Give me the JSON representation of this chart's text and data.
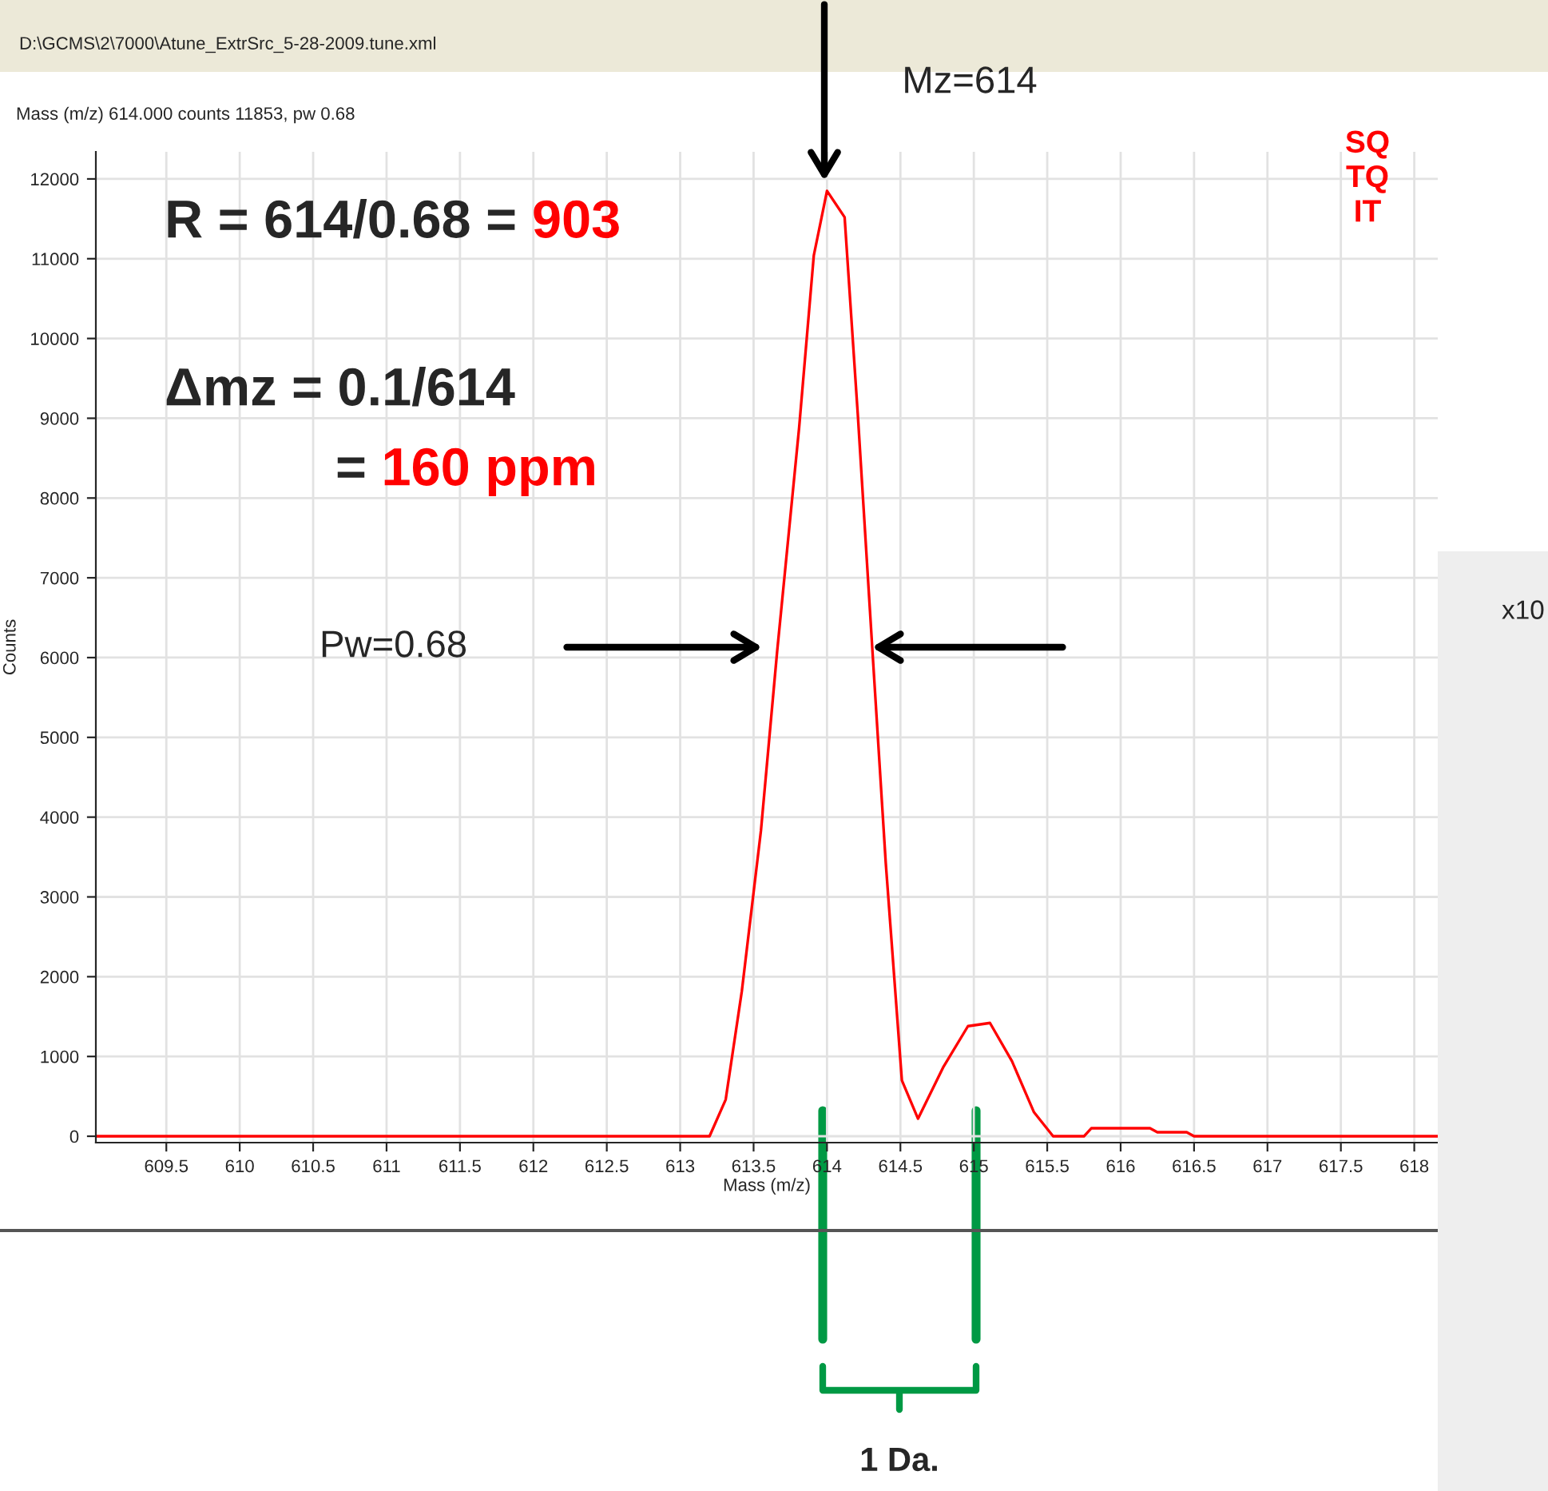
{
  "chart_data": {
    "type": "line",
    "title": "Mass (m/z) 614.000 counts 11853, pw 0.68",
    "xlabel": "Mass (m/z)",
    "ylabel": "Counts",
    "series": [
      {
        "color": "#ff0000",
        "x": [
          609.02,
          613.15,
          613.2,
          613.31,
          613.42,
          613.55,
          613.66,
          613.81,
          613.91,
          614.0,
          614.12,
          614.21,
          614.31,
          614.4,
          614.51,
          614.62,
          614.79,
          614.96,
          615.11,
          615.26,
          615.41,
          615.54,
          615.75,
          615.8,
          616.2,
          616.25,
          616.45,
          616.5,
          618.16
        ],
        "values": [
          0,
          0,
          0,
          460,
          1820,
          3830,
          6070,
          8880,
          11040,
          11850,
          11520,
          9040,
          6070,
          3430,
          700,
          220,
          860,
          1380,
          1420,
          940,
          300,
          0,
          0,
          100,
          100,
          50,
          50,
          0,
          0
        ]
      }
    ],
    "xlim": [
      609.02,
      618.16
    ],
    "ylim": [
      -80,
      12340
    ],
    "xticks": [
      609.5,
      610,
      610.5,
      611,
      611.5,
      612,
      612.5,
      613,
      613.5,
      614,
      614.5,
      615,
      615.5,
      616,
      616.5,
      617,
      617.5,
      618
    ],
    "yticks": [
      0,
      1000,
      2000,
      3000,
      4000,
      5000,
      6000,
      7000,
      8000,
      9000,
      10000,
      11000,
      12000
    ],
    "grid": true,
    "legend": false,
    "marker": "none",
    "line_style": "solid",
    "annotations": [
      "D:\\GCMS\\2\\7000\\Atune_ExtrSrc_5-28-2009.tune.xml",
      "Mz=614",
      "R = 614/0.68 = ",
      "903",
      "Δmz = 0.1/614",
      "= ",
      "160 ppm",
      "Pw=0.68",
      "SQ\nTQ\nIT",
      "1 Da.",
      "x10"
    ]
  }
}
